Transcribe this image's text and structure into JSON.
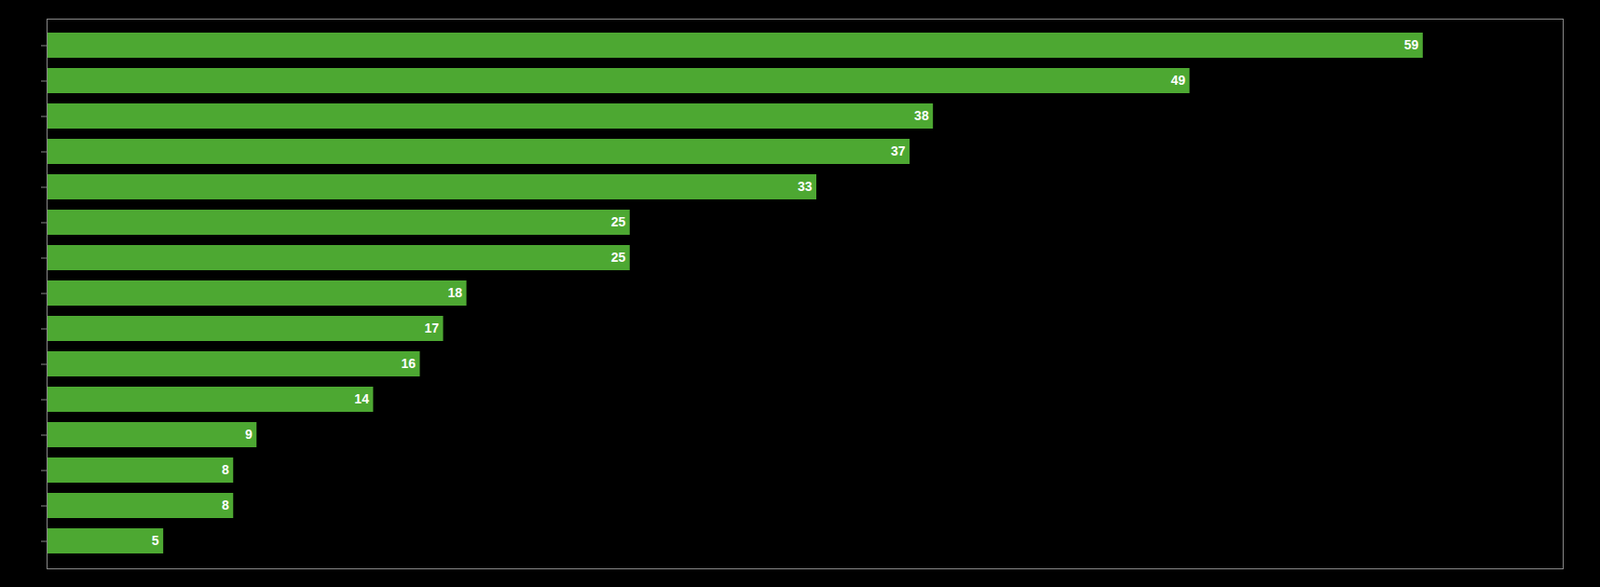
{
  "chart_data": {
    "type": "bar",
    "orientation": "horizontal",
    "categories": [
      null,
      null,
      null,
      null,
      null,
      null,
      null,
      null,
      null,
      null,
      null,
      null,
      null,
      null,
      null
    ],
    "values": [
      59,
      49,
      38,
      37,
      33,
      25,
      25,
      18,
      17,
      16,
      14,
      9,
      8,
      8,
      5
    ],
    "color": "#4da832",
    "xlim": [
      0,
      65
    ],
    "xticks": [],
    "tick_labels": false,
    "data_labels": true
  }
}
